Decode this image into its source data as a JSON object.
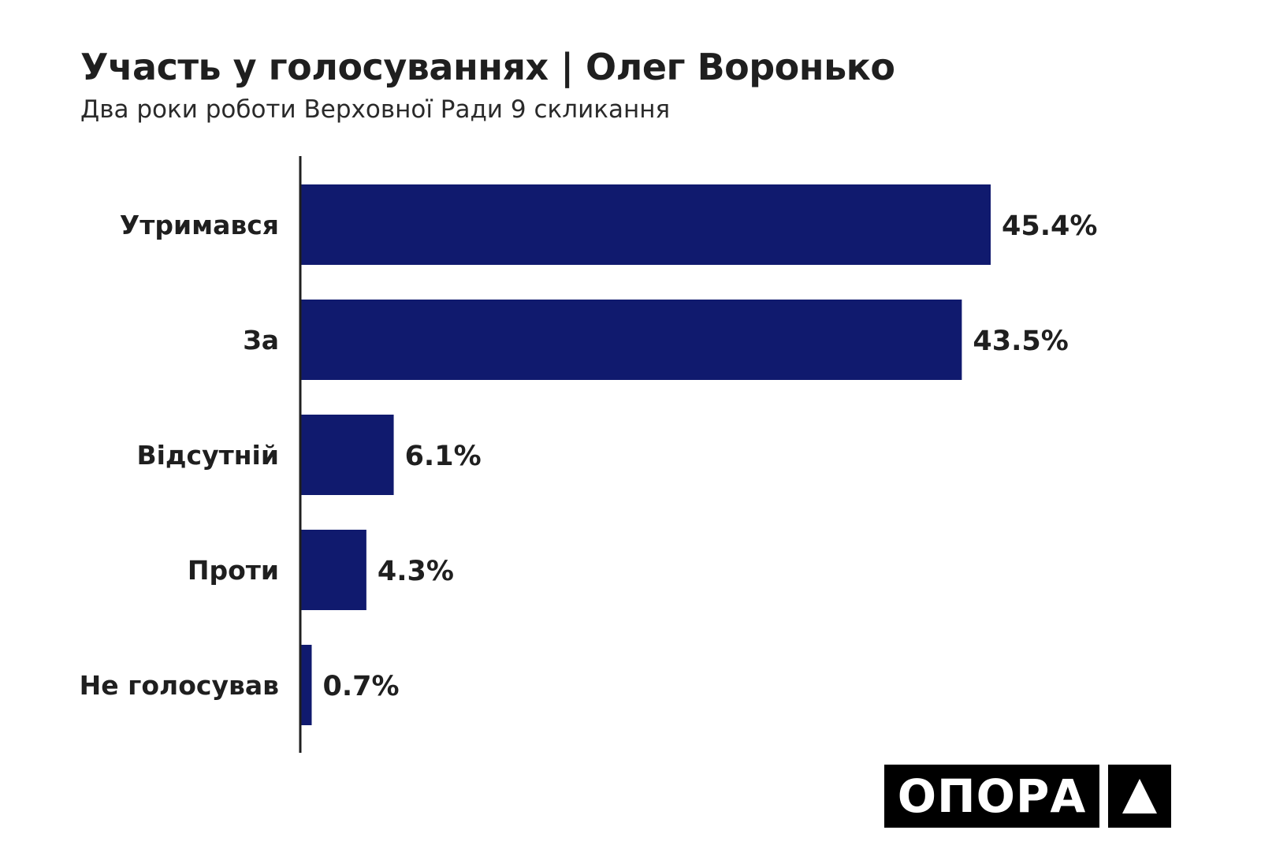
{
  "chart_data": {
    "type": "bar",
    "orientation": "horizontal",
    "title": "Участь у голосуваннях | Олег Воронько",
    "subtitle": "Два роки роботи Верховної Ради 9 скликання",
    "categories": [
      "Утримався",
      "За",
      "Відсутній",
      "Проти",
      "Не голосував"
    ],
    "values": [
      45.4,
      43.5,
      6.1,
      4.3,
      0.7
    ],
    "value_labels": [
      "45.4%",
      "43.5%",
      "6.1%",
      "4.3%",
      "0.7%"
    ],
    "xlim": [
      0,
      45.4
    ],
    "grid": false,
    "bar_color": "#101a6e"
  },
  "logo": {
    "text": "ОПОРА",
    "mark": "triangle-icon"
  }
}
